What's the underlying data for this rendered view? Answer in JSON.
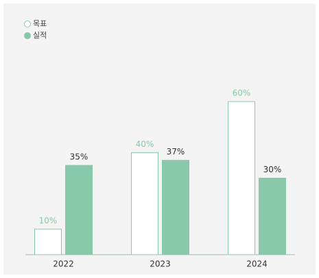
{
  "chart_data": {
    "type": "bar",
    "categories": [
      "2022",
      "2023",
      "2024"
    ],
    "series": [
      {
        "name": "목표",
        "color": "#ffffff",
        "stroke": "#88c9a9",
        "label_color": "#88c9a9",
        "values": [
          10,
          40,
          60
        ],
        "value_labels": [
          "10%",
          "40%",
          "60%"
        ]
      },
      {
        "name": "실적",
        "color": "#88c9a9",
        "stroke": "#88c9a9",
        "label_color": "#333333",
        "values": [
          35,
          37,
          30
        ],
        "value_labels": [
          "35%",
          "37%",
          "30%"
        ]
      }
    ]
  }
}
